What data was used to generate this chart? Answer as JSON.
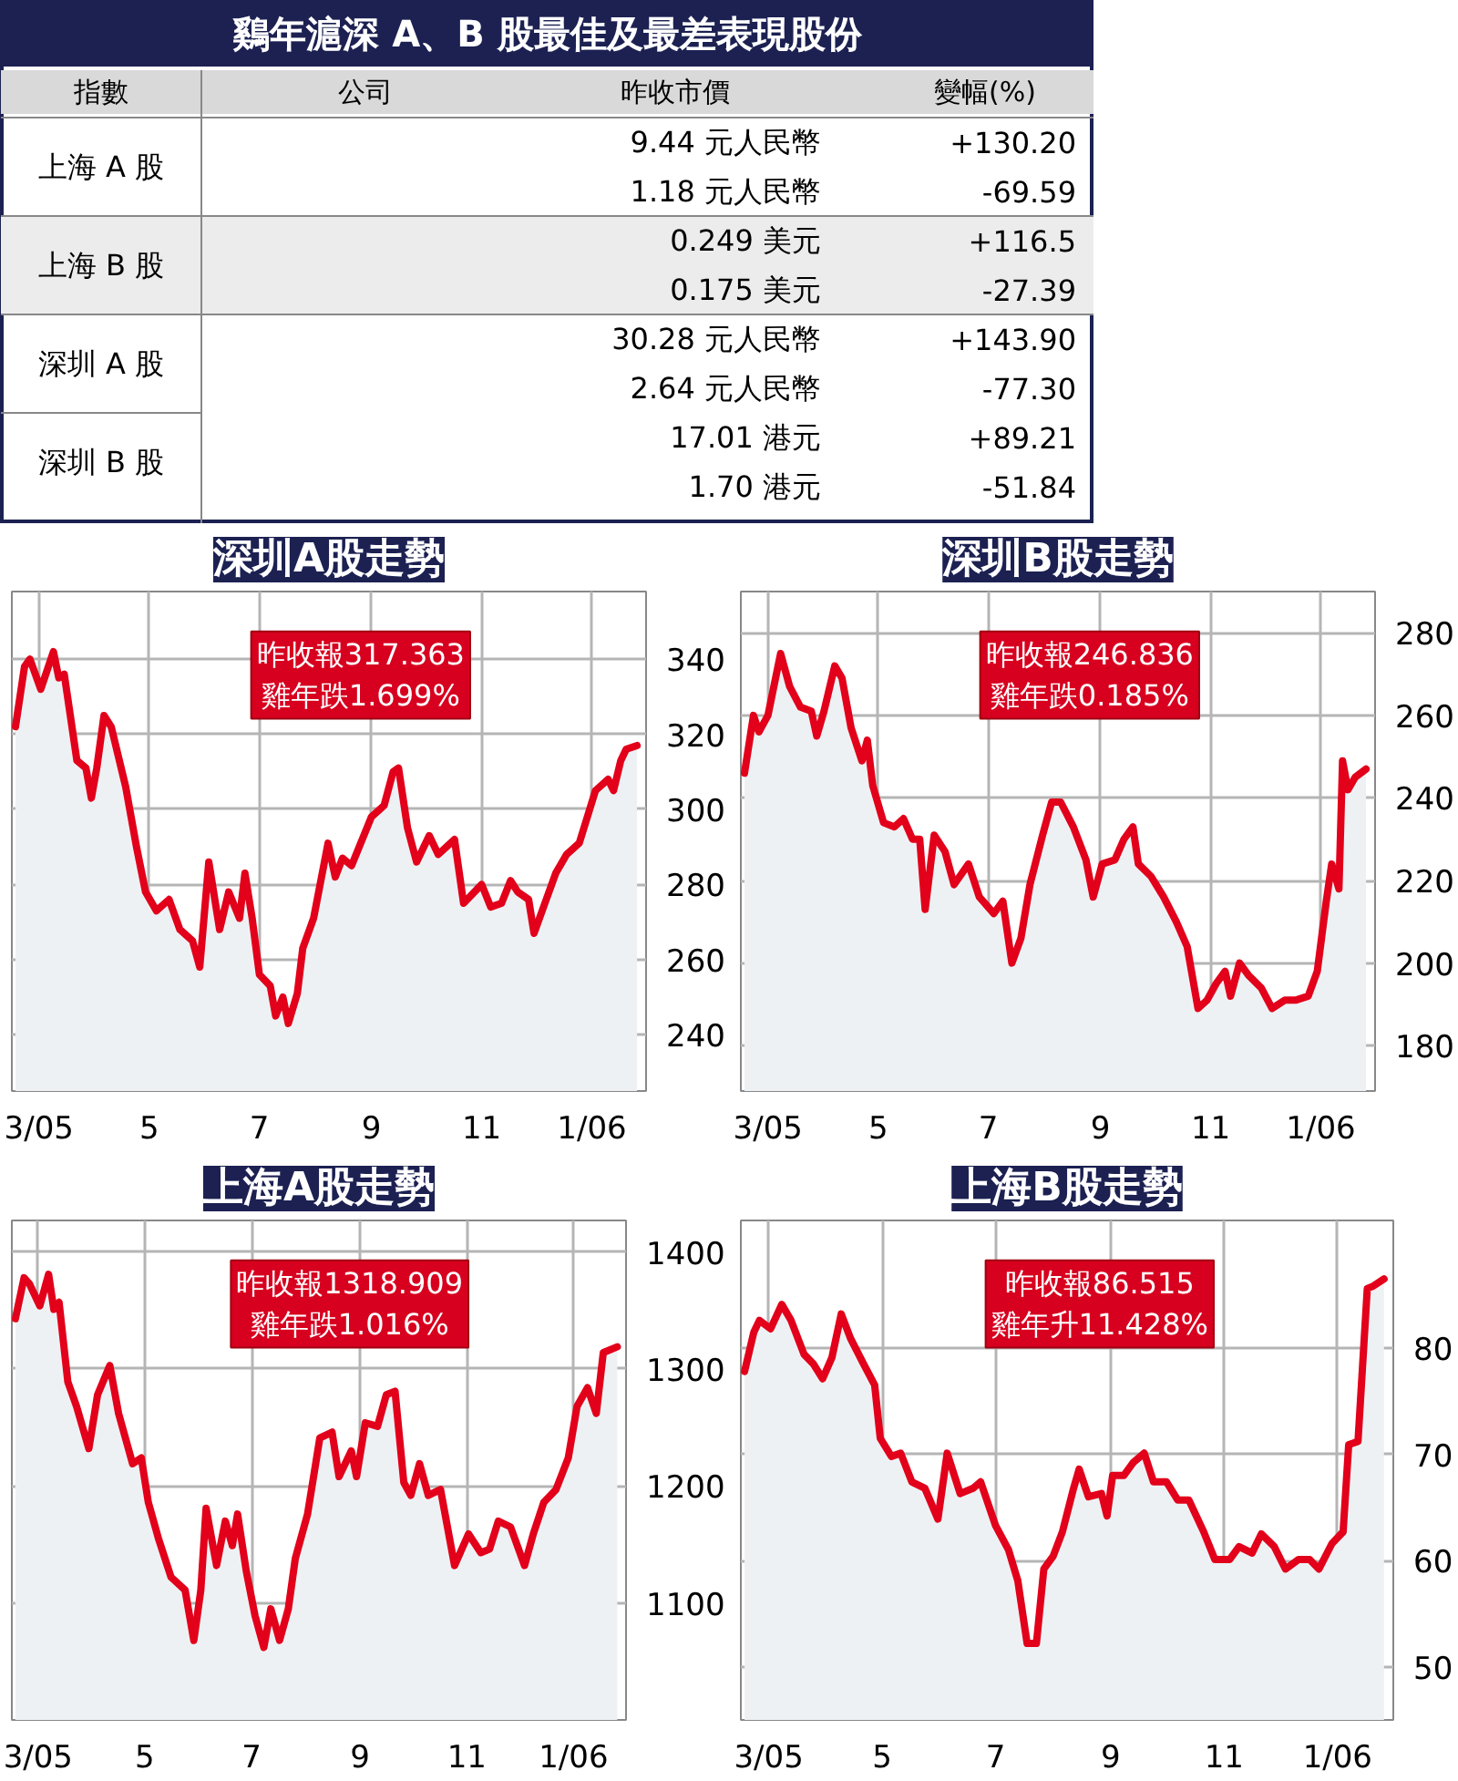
{
  "chart_data": [
    {
      "type": "other",
      "title": "鷄年滬深 A、B 股最佳及最差表現股份",
      "categories": [
        "指數",
        "公司",
        "昨收市價",
        "變幅(%)"
      ],
      "y_categories": [
        "上海 A 股",
        "上海 B 股",
        "深圳 A 股",
        "深圳 B 股"
      ],
      "cell_labels": [
        [
          "9.44 元人民幣",
          "+130.20"
        ],
        [
          "1.18 元人民幣",
          "-69.59"
        ],
        [
          "0.249 美元",
          "+116.5"
        ],
        [
          "0.175 美元",
          "-27.39"
        ],
        [
          "30.28 元人民幣",
          "+143.90"
        ],
        [
          "2.64 元人民幣",
          "-77.30"
        ],
        [
          "17.01 港元",
          "+89.21"
        ],
        [
          "1.70 港元",
          "-51.84"
        ]
      ]
    },
    {
      "type": "area",
      "title": "深圳A股走勢",
      "annotations": [
        "昨收報317.363\n雞年跌1.699%"
      ],
      "grid": true,
      "xlim": [
        "2005-02-14",
        "2006-01-31"
      ],
      "ylim": [
        225,
        358
      ],
      "yticks": [
        240,
        260,
        280,
        300,
        320,
        340
      ],
      "xticks": [
        {
          "value": "2005-03-01",
          "label": "3/05"
        },
        {
          "value": "2005-05-01",
          "label": "5"
        },
        {
          "value": "2005-07-01",
          "label": "7"
        },
        {
          "value": "2005-09-01",
          "label": "9"
        },
        {
          "value": "2005-11-01",
          "label": "11"
        },
        {
          "value": "2006-01-01",
          "label": "1/06"
        }
      ],
      "series": [
        {
          "color": "#e2001a",
          "x": [
            "2005-02-16",
            "2005-02-21",
            "2005-02-24",
            "2005-03-02",
            "2005-03-09",
            "2005-03-12",
            "2005-03-15",
            "2005-03-22",
            "2005-03-27",
            "2005-03-30",
            "2005-04-02",
            "2005-04-06",
            "2005-04-10",
            "2005-04-18",
            "2005-04-24",
            "2005-04-29",
            "2005-05-05",
            "2005-05-12",
            "2005-05-18",
            "2005-05-25",
            "2005-05-29",
            "2005-06-03",
            "2005-06-09",
            "2005-06-14",
            "2005-06-20",
            "2005-06-23",
            "2005-06-27",
            "2005-07-01",
            "2005-07-07",
            "2005-07-10",
            "2005-07-14",
            "2005-07-17",
            "2005-07-22",
            "2005-07-25",
            "2005-07-31",
            "2005-08-08",
            "2005-08-12",
            "2005-08-16",
            "2005-08-21",
            "2005-09-01",
            "2005-09-08",
            "2005-09-13",
            "2005-09-16",
            "2005-09-21",
            "2005-09-26",
            "2005-10-03",
            "2005-10-08",
            "2005-10-17",
            "2005-10-22",
            "2005-11-01",
            "2005-11-06",
            "2005-11-12",
            "2005-11-17",
            "2005-11-21",
            "2005-11-27",
            "2005-11-30",
            "2005-12-06",
            "2005-12-12",
            "2005-12-18",
            "2005-12-25",
            "2006-01-03",
            "2006-01-10",
            "2006-01-13",
            "2006-01-17",
            "2006-01-20",
            "2006-01-26"
          ],
          "values": [
            322,
            338,
            340,
            332,
            342,
            335,
            336,
            313,
            311,
            303,
            311,
            325,
            322,
            306,
            290,
            278,
            273,
            276,
            268,
            265,
            258,
            286,
            268,
            278,
            271,
            283,
            271,
            256,
            253,
            245,
            250,
            243,
            251,
            263,
            271,
            291,
            282,
            287,
            285,
            298,
            301,
            310,
            311,
            295,
            286,
            293,
            288,
            292,
            275,
            280,
            274,
            275,
            281,
            278,
            276,
            267,
            275,
            283,
            288,
            291,
            305,
            308,
            305,
            313,
            316,
            317
          ]
        }
      ]
    },
    {
      "type": "area",
      "title": "深圳B股走勢",
      "annotations": [
        "昨收報246.836\n雞年跌0.185%"
      ],
      "grid": true,
      "xlim": [
        "2005-02-14",
        "2006-01-31"
      ],
      "ylim": [
        169,
        290
      ],
      "yticks": [
        180,
        200,
        220,
        240,
        260,
        280
      ],
      "xticks": [
        {
          "value": "2005-03-01",
          "label": "3/05"
        },
        {
          "value": "2005-05-01",
          "label": "5"
        },
        {
          "value": "2005-07-01",
          "label": "7"
        },
        {
          "value": "2005-09-01",
          "label": "9"
        },
        {
          "value": "2005-11-01",
          "label": "11"
        },
        {
          "value": "2006-01-01",
          "label": "1/06"
        }
      ],
      "series": [
        {
          "color": "#e2001a",
          "x": [
            "2005-02-16",
            "2005-02-21",
            "2005-02-24",
            "2005-03-01",
            "2005-03-08",
            "2005-03-13",
            "2005-03-19",
            "2005-03-25",
            "2005-03-28",
            "2005-04-01",
            "2005-04-07",
            "2005-04-11",
            "2005-04-16",
            "2005-04-22",
            "2005-04-25",
            "2005-04-28",
            "2005-05-04",
            "2005-05-10",
            "2005-05-15",
            "2005-05-20",
            "2005-05-24",
            "2005-05-27",
            "2005-06-01",
            "2005-06-07",
            "2005-06-12",
            "2005-06-20",
            "2005-06-26",
            "2005-07-04",
            "2005-07-09",
            "2005-07-14",
            "2005-07-19",
            "2005-07-24",
            "2005-07-31",
            "2005-08-05",
            "2005-08-10",
            "2005-08-17",
            "2005-08-24",
            "2005-08-28",
            "2005-09-02",
            "2005-09-09",
            "2005-09-14",
            "2005-09-19",
            "2005-09-22",
            "2005-09-29",
            "2005-10-06",
            "2005-10-13",
            "2005-10-19",
            "2005-10-25",
            "2005-10-30",
            "2005-11-04",
            "2005-11-09",
            "2005-11-12",
            "2005-11-17",
            "2005-11-22",
            "2005-11-29",
            "2005-12-05",
            "2005-12-12",
            "2005-12-18",
            "2005-12-25",
            "2005-12-30",
            "2006-01-04",
            "2006-01-07",
            "2006-01-11",
            "2006-01-13",
            "2006-01-16",
            "2006-01-20",
            "2006-01-26"
          ],
          "values": [
            246,
            260,
            256,
            260,
            275,
            267,
            262,
            261,
            255,
            261,
            272,
            269,
            257,
            249,
            254,
            243,
            234,
            233,
            235,
            230,
            230,
            213,
            231,
            227,
            219,
            224,
            216,
            212,
            215,
            200,
            206,
            219,
            231,
            239,
            239,
            233,
            225,
            216,
            224,
            225,
            230,
            233,
            224,
            221,
            216,
            210,
            204,
            189,
            191,
            195,
            198,
            192,
            200,
            197,
            194,
            189,
            191,
            191,
            192,
            198,
            215,
            224,
            218,
            249,
            242,
            245,
            247
          ]
        }
      ]
    },
    {
      "type": "area",
      "title": "上海A股走勢",
      "annotations": [
        "昨收報1318.909\n雞年跌1.016%"
      ],
      "grid": true,
      "xlim": [
        "2005-02-14",
        "2006-01-31"
      ],
      "ylim": [
        1000,
        1427
      ],
      "yticks": [
        1100,
        1200,
        1300,
        1400
      ],
      "xticks": [
        {
          "value": "2005-03-01",
          "label": "3/05"
        },
        {
          "value": "2005-05-01",
          "label": "5"
        },
        {
          "value": "2005-07-01",
          "label": "7"
        },
        {
          "value": "2005-09-01",
          "label": "9"
        },
        {
          "value": "2005-11-01",
          "label": "11"
        },
        {
          "value": "2006-01-01",
          "label": "1/06"
        }
      ],
      "series": [
        {
          "color": "#e2001a",
          "x": [
            "2005-02-16",
            "2005-02-21",
            "2005-02-24",
            "2005-03-02",
            "2005-03-07",
            "2005-03-10",
            "2005-03-13",
            "2005-03-18",
            "2005-03-23",
            "2005-03-30",
            "2005-04-04",
            "2005-04-11",
            "2005-04-16",
            "2005-04-24",
            "2005-04-29",
            "2005-05-03",
            "2005-05-09",
            "2005-05-16",
            "2005-05-24",
            "2005-05-29",
            "2005-06-02",
            "2005-06-05",
            "2005-06-11",
            "2005-06-16",
            "2005-06-20",
            "2005-06-23",
            "2005-06-28",
            "2005-07-03",
            "2005-07-08",
            "2005-07-12",
            "2005-07-17",
            "2005-07-22",
            "2005-07-26",
            "2005-08-02",
            "2005-08-09",
            "2005-08-16",
            "2005-08-20",
            "2005-08-27",
            "2005-08-30",
            "2005-09-04",
            "2005-09-11",
            "2005-09-16",
            "2005-09-21",
            "2005-09-26",
            "2005-09-30",
            "2005-10-05",
            "2005-10-10",
            "2005-10-17",
            "2005-10-25",
            "2005-11-02",
            "2005-11-09",
            "2005-11-14",
            "2005-11-19",
            "2005-11-26",
            "2005-12-04",
            "2005-12-09",
            "2005-12-15",
            "2005-12-22",
            "2005-12-29",
            "2006-01-03",
            "2006-01-09",
            "2006-01-14",
            "2006-01-18",
            "2006-01-26"
          ],
          "values": [
            1343,
            1378,
            1373,
            1354,
            1381,
            1351,
            1357,
            1289,
            1268,
            1232,
            1278,
            1303,
            1262,
            1219,
            1224,
            1186,
            1154,
            1122,
            1111,
            1068,
            1111,
            1181,
            1132,
            1170,
            1149,
            1176,
            1127,
            1089,
            1062,
            1095,
            1068,
            1095,
            1138,
            1176,
            1241,
            1246,
            1208,
            1230,
            1208,
            1254,
            1251,
            1278,
            1281,
            1203,
            1192,
            1219,
            1192,
            1197,
            1132,
            1159,
            1143,
            1146,
            1170,
            1165,
            1132,
            1159,
            1186,
            1197,
            1224,
            1268,
            1284,
            1262,
            1314,
            1319
          ]
        }
      ]
    },
    {
      "type": "area",
      "title": "上海B股走勢",
      "annotations": [
        "昨收報86.515\n雞年升11.428%"
      ],
      "grid": true,
      "xlim": [
        "2005-02-14",
        "2006-01-31"
      ],
      "ylim": [
        45,
        92
      ],
      "yticks": [
        50,
        60,
        70,
        80
      ],
      "xticks": [
        {
          "value": "2005-03-01",
          "label": "3/05"
        },
        {
          "value": "2005-05-01",
          "label": "5"
        },
        {
          "value": "2005-07-01",
          "label": "7"
        },
        {
          "value": "2005-09-01",
          "label": "9"
        },
        {
          "value": "2005-11-01",
          "label": "11"
        },
        {
          "value": "2006-01-01",
          "label": "1/06"
        }
      ],
      "series": [
        {
          "color": "#e2001a",
          "x": [
            "2005-02-16",
            "2005-02-21",
            "2005-02-24",
            "2005-03-02",
            "2005-03-08",
            "2005-03-13",
            "2005-03-20",
            "2005-03-25",
            "2005-03-30",
            "2005-04-04",
            "2005-04-09",
            "2005-04-14",
            "2005-04-21",
            "2005-04-27",
            "2005-04-30",
            "2005-05-06",
            "2005-05-11",
            "2005-05-17",
            "2005-05-24",
            "2005-05-31",
            "2005-06-05",
            "2005-06-12",
            "2005-06-19",
            "2005-06-23",
            "2005-07-01",
            "2005-07-08",
            "2005-07-13",
            "2005-07-18",
            "2005-07-23",
            "2005-07-27",
            "2005-08-01",
            "2005-08-06",
            "2005-08-12",
            "2005-08-15",
            "2005-08-20",
            "2005-08-27",
            "2005-08-30",
            "2005-09-02",
            "2005-09-08",
            "2005-09-13",
            "2005-09-19",
            "2005-09-24",
            "2005-10-01",
            "2005-10-07",
            "2005-10-13",
            "2005-10-21",
            "2005-10-27",
            "2005-11-04",
            "2005-11-09",
            "2005-11-16",
            "2005-11-21",
            "2005-11-28",
            "2005-12-04",
            "2005-12-11",
            "2005-12-17",
            "2005-12-22",
            "2005-12-29",
            "2006-01-04",
            "2006-01-07",
            "2006-01-12",
            "2006-01-17",
            "2006-01-20",
            "2006-01-26"
          ],
          "values": [
            77.8,
            81.5,
            82.6,
            81.8,
            84.1,
            82.6,
            79.4,
            78.5,
            77.1,
            79.1,
            83.2,
            80.9,
            78.5,
            76.5,
            71.5,
            69.8,
            70.1,
            67.4,
            66.8,
            63.9,
            70.1,
            66.3,
            66.8,
            67.4,
            63.3,
            61.0,
            58.1,
            52.2,
            52.2,
            59.2,
            60.4,
            62.7,
            66.8,
            68.6,
            66.0,
            66.3,
            64.2,
            68.0,
            68.0,
            69.2,
            70.1,
            67.4,
            67.4,
            65.7,
            65.7,
            62.7,
            60.1,
            60.1,
            61.3,
            60.7,
            62.5,
            61.3,
            59.2,
            60.1,
            60.1,
            59.2,
            61.6,
            62.7,
            70.9,
            71.2,
            85.6,
            85.8,
            86.5
          ]
        }
      ]
    }
  ]
}
